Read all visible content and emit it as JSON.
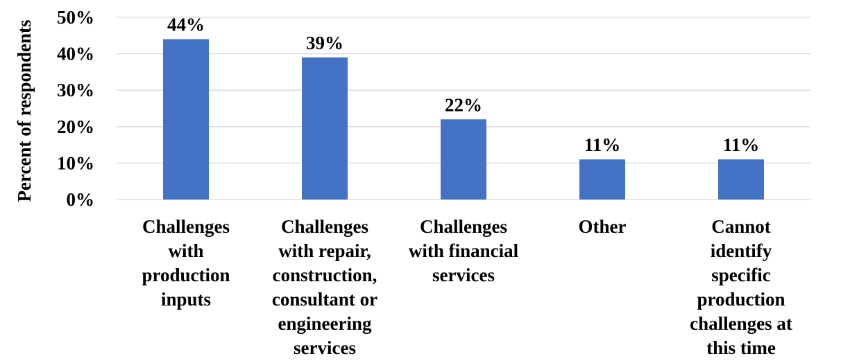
{
  "chart_data": {
    "type": "bar",
    "title": "",
    "xlabel": "",
    "ylabel": "Percent of respondents",
    "ylim": [
      0,
      50
    ],
    "yticks": [
      "0%",
      "10%",
      "20%",
      "30%",
      "40%",
      "50%"
    ],
    "ytick_values": [
      0,
      10,
      20,
      30,
      40,
      50
    ],
    "grid": true,
    "legend": "none",
    "categories": [
      "Challenges with production inputs",
      "Challenges with repair, construction, consultant or engineering services",
      "Challenges with financial services",
      "Other",
      "Cannot identify specific production challenges at this time"
    ],
    "category_lines": [
      [
        "Challenges",
        "with",
        "production",
        "inputs"
      ],
      [
        "Challenges",
        "with repair,",
        "construction,",
        "consultant or",
        "engineering",
        "services"
      ],
      [
        "Challenges",
        "with financial",
        "services"
      ],
      [
        "Other"
      ],
      [
        "Cannot",
        "identify",
        "specific",
        "production",
        "challenges at",
        "this time"
      ]
    ],
    "values": [
      44,
      39,
      22,
      11,
      11
    ],
    "data_labels": [
      "44%",
      "39%",
      "22%",
      "11%",
      "11%"
    ],
    "colors": {
      "bar": "#4472C4",
      "grid": "#D9D9D9",
      "text": "#000000"
    }
  }
}
